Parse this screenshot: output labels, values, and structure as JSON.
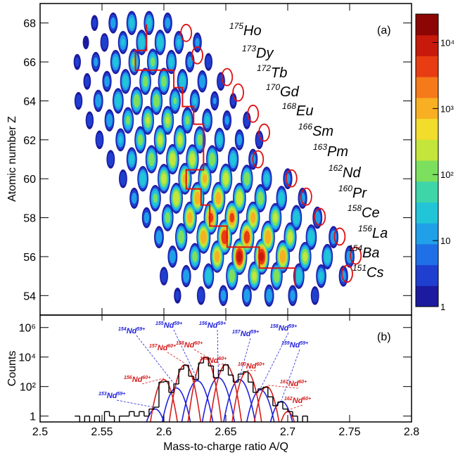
{
  "chart_data": [
    {
      "type": "heatmap",
      "ylabel": "Atomic number Z",
      "panel_label": "(a)",
      "xlim": [
        2.5,
        2.8
      ],
      "xticks": [
        2.5,
        2.55,
        2.6,
        2.65,
        2.7,
        2.75,
        2.8
      ],
      "ylim": [
        53,
        69
      ],
      "yticks": [
        54,
        56,
        58,
        60,
        62,
        64,
        66,
        68
      ],
      "log_z": true,
      "zlim": [
        1,
        27000
      ],
      "zticks": [
        1,
        10,
        {
          "value": 100,
          "label": "10²"
        },
        {
          "value": 1000,
          "label": "10³"
        },
        {
          "value": 10000,
          "label": "10⁴"
        }
      ],
      "colormap": [
        "#1c1a9e",
        "#1f3fd0",
        "#1f6fe6",
        "#1fa0e8",
        "#22c4d8",
        "#3ed6a8",
        "#7ddf5e",
        "#c4e63a",
        "#f2dc2c",
        "#f8b022",
        "#f57a1a",
        "#e83c12",
        "#c81a0c",
        "#8c0606"
      ],
      "rows": [
        {
          "z": 54,
          "x": [
            2.611,
            2.63,
            2.648,
            2.667,
            2.685,
            2.704,
            2.722
          ],
          "values": [
            5,
            10,
            20,
            30,
            30,
            20,
            10
          ]
        },
        {
          "z": 55,
          "x": [
            2.6,
            2.618,
            2.636,
            2.655,
            2.673,
            2.691,
            2.709,
            2.727,
            2.745
          ],
          "values": [
            10,
            30,
            100,
            300,
            500,
            300,
            100,
            50,
            20
          ]
        },
        {
          "z": 56,
          "x": [
            2.607,
            2.625,
            2.643,
            2.661,
            2.679,
            2.696,
            2.714,
            2.732,
            2.75
          ],
          "values": [
            30,
            200,
            2000,
            20000,
            15000,
            3000,
            500,
            100,
            30
          ]
        },
        {
          "z": 57,
          "x": [
            2.596,
            2.614,
            2.632,
            2.649,
            2.667,
            2.684,
            2.702,
            2.719,
            2.737
          ],
          "values": [
            30,
            300,
            3000,
            10000,
            8000,
            3000,
            600,
            100,
            30
          ]
        },
        {
          "z": 58,
          "x": [
            2.586,
            2.603,
            2.621,
            2.638,
            2.655,
            2.672,
            2.69,
            2.707,
            2.724
          ],
          "values": [
            20,
            200,
            2000,
            5000,
            5000,
            2000,
            500,
            100,
            30
          ]
        },
        {
          "z": 59,
          "x": [
            2.576,
            2.593,
            2.61,
            2.627,
            2.644,
            2.661,
            2.678,
            2.695,
            2.712
          ],
          "values": [
            20,
            150,
            1000,
            2500,
            2500,
            1000,
            300,
            80,
            20
          ]
        },
        {
          "z": 60,
          "x": [
            2.567,
            2.583,
            2.6,
            2.617,
            2.633,
            2.65,
            2.667,
            2.683,
            2.7
          ],
          "values": [
            10,
            100,
            600,
            1500,
            1500,
            800,
            300,
            60,
            20
          ]
        },
        {
          "z": 61,
          "x": [
            2.557,
            2.574,
            2.59,
            2.607,
            2.623,
            2.639,
            2.656,
            2.672
          ],
          "values": [
            10,
            60,
            300,
            800,
            700,
            300,
            80,
            20
          ]
        },
        {
          "z": 62,
          "x": [
            2.548,
            2.565,
            2.581,
            2.597,
            2.613,
            2.629,
            2.645,
            2.661,
            2.677
          ],
          "values": [
            10,
            40,
            200,
            500,
            500,
            200,
            60,
            20,
            10
          ]
        },
        {
          "z": 63,
          "x": [
            2.54,
            2.556,
            2.571,
            2.587,
            2.603,
            2.619,
            2.635,
            2.651,
            2.667
          ],
          "values": [
            8,
            30,
            150,
            400,
            400,
            150,
            50,
            15,
            8
          ]
        },
        {
          "z": 64,
          "x": [
            2.531,
            2.547,
            2.563,
            2.578,
            2.594,
            2.609,
            2.625,
            2.641,
            2.656
          ],
          "values": [
            8,
            30,
            100,
            300,
            300,
            120,
            40,
            12,
            5
          ]
        },
        {
          "z": 65,
          "x": [
            2.538,
            2.554,
            2.569,
            2.585,
            2.6,
            2.615,
            2.631,
            2.646
          ],
          "values": [
            6,
            20,
            80,
            200,
            200,
            80,
            30,
            10
          ]
        },
        {
          "z": 66,
          "x": [
            2.53,
            2.545,
            2.561,
            2.576,
            2.591,
            2.606,
            2.621,
            2.636
          ],
          "values": [
            5,
            15,
            60,
            150,
            150,
            60,
            20,
            8
          ]
        },
        {
          "z": 67,
          "x": [
            2.537,
            2.552,
            2.567,
            2.582,
            2.597,
            2.612,
            2.627
          ],
          "values": [
            3,
            10,
            40,
            100,
            100,
            40,
            15
          ]
        },
        {
          "z": 68,
          "x": [
            2.544,
            2.559,
            2.574,
            2.588,
            2.603
          ],
          "values": [
            5,
            20,
            60,
            60,
            20
          ]
        }
      ],
      "circles": {
        "color": "#e01010",
        "x": [
          2.618,
          2.627,
          2.651,
          2.66,
          2.672,
          2.681,
          2.676,
          2.703,
          2.715,
          2.726,
          2.742,
          2.755,
          2.748
        ],
        "y": [
          67.49,
          66.34,
          65.22,
          64.43,
          63.34,
          62.37,
          61.0,
          60.02,
          59.08,
          58.04,
          57.03,
          56.05,
          55.12
        ]
      },
      "boundary": {
        "color": "#e01010",
        "x": [
          2.586,
          2.586,
          2.577,
          2.577,
          2.608,
          2.608,
          2.615,
          2.615,
          2.624,
          2.624,
          2.632,
          2.632,
          2.618,
          2.618,
          2.63,
          2.63,
          2.637,
          2.637,
          2.651,
          2.651,
          2.677,
          2.677,
          2.706,
          2.706
        ],
        "y": [
          67.93,
          66.59,
          66.59,
          65.58,
          65.58,
          64.68,
          64.68,
          63.71,
          63.71,
          62.8,
          62.8,
          60.46,
          60.46,
          59.48,
          59.48,
          58.65,
          58.65,
          57.57,
          57.57,
          56.49,
          56.49,
          55.41,
          55.41,
          54.51
        ]
      },
      "isotopes": [
        {
          "mass": "175",
          "element": "Ho"
        },
        {
          "mass": "173",
          "element": "Dy"
        },
        {
          "mass": "172",
          "element": "Tb"
        },
        {
          "mass": "170",
          "element": "Gd"
        },
        {
          "mass": "168",
          "element": "Eu"
        },
        {
          "mass": "166",
          "element": "Sm"
        },
        {
          "mass": "163",
          "element": "Pm"
        },
        {
          "mass": "162",
          "element": "Nd"
        },
        {
          "mass": "160",
          "element": "Pr"
        },
        {
          "mass": "158",
          "element": "Ce"
        },
        {
          "mass": "156",
          "element": "La"
        },
        {
          "mass": "154",
          "element": "Ba"
        },
        {
          "mass": "151",
          "element": "Cs"
        }
      ]
    },
    {
      "type": "histogram",
      "xlabel": "Mass-to-charge ratio A/Q",
      "ylabel": "Counts",
      "panel_label": "(b)",
      "xlim": [
        2.5,
        2.8
      ],
      "xticks": [
        2.5,
        2.55,
        2.6,
        2.65,
        2.7,
        2.75,
        2.8
      ],
      "log_y": true,
      "ylim": [
        0.4,
        7000000
      ],
      "yticks": [
        1,
        {
          "value": 100,
          "label": "10²"
        },
        {
          "value": 10000,
          "label": "10⁴"
        },
        {
          "value": 1000000,
          "label": "10⁶"
        }
      ],
      "color": "#000000",
      "bins": [
        2.528,
        2.532,
        2.536,
        2.54,
        2.544,
        2.548,
        2.552,
        2.556,
        2.56,
        2.564,
        2.568,
        2.572,
        2.576,
        2.58,
        2.584,
        2.588,
        2.592,
        2.596,
        2.6,
        2.604,
        2.608,
        2.612,
        2.616,
        2.62,
        2.624,
        2.628,
        2.632,
        2.636,
        2.64,
        2.644,
        2.648,
        2.652,
        2.656,
        2.66,
        2.664,
        2.668,
        2.672,
        2.676,
        2.68,
        2.684,
        2.688,
        2.692,
        2.696,
        2.7,
        2.704,
        2.708,
        2.712,
        2.716,
        2.72
      ],
      "counts": [
        1,
        0,
        1,
        0,
        1,
        0,
        2,
        1,
        0,
        1,
        1,
        2,
        1,
        2,
        1,
        3,
        4,
        200,
        220,
        40,
        150,
        1500,
        2800,
        500,
        300,
        4000,
        9500,
        2500,
        400,
        1200,
        3000,
        600,
        200,
        700,
        1000,
        200,
        40,
        70,
        90,
        20,
        5,
        9,
        3,
        2,
        1,
        0,
        1,
        0
      ],
      "peaks": [
        {
          "mass": "153",
          "element": "Nd",
          "charge": "59+",
          "center": 2.593,
          "height": 3,
          "sigma": 0.0035,
          "color": "#2222dd"
        },
        {
          "mass": "154",
          "element": "Nd",
          "charge": "59+",
          "center": 2.61,
          "height": 80,
          "sigma": 0.0035,
          "color": "#2222dd"
        },
        {
          "mass": "155",
          "element": "Nd",
          "charge": "59+",
          "center": 2.627,
          "height": 250,
          "sigma": 0.0035,
          "color": "#2222dd"
        },
        {
          "mass": "156",
          "element": "Nd",
          "charge": "59+",
          "center": 2.644,
          "height": 400,
          "sigma": 0.0035,
          "color": "#2222dd"
        },
        {
          "mass": "157",
          "element": "Nd",
          "charge": "59+",
          "center": 2.661,
          "height": 300,
          "sigma": 0.0035,
          "color": "#2222dd"
        },
        {
          "mass": "158",
          "element": "Nd",
          "charge": "59+",
          "center": 2.678,
          "height": 60,
          "sigma": 0.0035,
          "color": "#2222dd"
        },
        {
          "mass": "159",
          "element": "Nd",
          "charge": "59+",
          "center": 2.695,
          "height": 10,
          "sigma": 0.0035,
          "color": "#2222dd"
        },
        {
          "mass": "156",
          "element": "Nd",
          "charge": "60+",
          "center": 2.6,
          "height": 300,
          "sigma": 0.003,
          "color": "#d61c1c"
        },
        {
          "mass": "157",
          "element": "Nd",
          "charge": "60+",
          "center": 2.617,
          "height": 3000,
          "sigma": 0.003,
          "color": "#d61c1c"
        },
        {
          "mass": "158",
          "element": "Nd",
          "charge": "60+",
          "center": 2.633,
          "height": 10000,
          "sigma": 0.003,
          "color": "#d61c1c"
        },
        {
          "mass": "159",
          "element": "Nd",
          "charge": "60+",
          "center": 2.65,
          "height": 3000,
          "sigma": 0.003,
          "color": "#d61c1c"
        },
        {
          "mass": "160",
          "element": "Nd",
          "charge": "60+",
          "center": 2.667,
          "height": 1000,
          "sigma": 0.003,
          "color": "#d61c1c"
        },
        {
          "mass": "161",
          "element": "Nd",
          "charge": "60+",
          "center": 2.683,
          "height": 100,
          "sigma": 0.003,
          "color": "#d61c1c"
        },
        {
          "mass": "162",
          "element": "Nd",
          "charge": "60+",
          "center": 2.7,
          "height": 2,
          "sigma": 0.003,
          "color": "#d61c1c"
        }
      ]
    }
  ]
}
